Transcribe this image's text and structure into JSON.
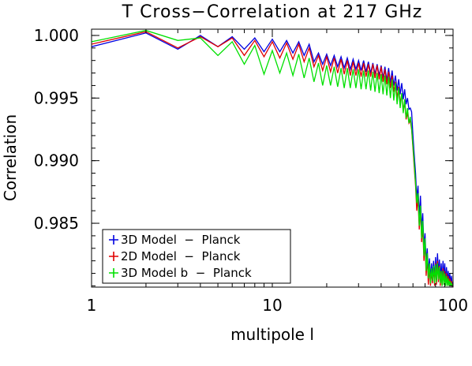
{
  "chart_data": {
    "type": "line",
    "title": "T Cross−Correlation at 217 GHz",
    "xlabel": "multipole l",
    "ylabel": "Correlation",
    "xscale": "log",
    "xlim": [
      1,
      100
    ],
    "ylim": [
      0.9799,
      1.0005
    ],
    "x_ticks": [
      1,
      10,
      100
    ],
    "x_tick_labels": [
      "1",
      "10",
      "100"
    ],
    "y_ticks": [
      0.985,
      0.99,
      0.995,
      1.0
    ],
    "y_tick_labels": [
      "0.985",
      "0.990",
      "0.995",
      "1.000"
    ],
    "grid": false,
    "legend_position": "bottom-left",
    "x": [
      1,
      2,
      3,
      4,
      5,
      6,
      7,
      8,
      9,
      10,
      11,
      12,
      13,
      14,
      15,
      16,
      17,
      18,
      19,
      20,
      21,
      22,
      23,
      24,
      25,
      26,
      27,
      28,
      29,
      30,
      31,
      32,
      33,
      34,
      35,
      36,
      37,
      38,
      39,
      40,
      41,
      42,
      43,
      44,
      45,
      46,
      47,
      48,
      49,
      50,
      51,
      52,
      53,
      54,
      55,
      56,
      57,
      58,
      59,
      60,
      61,
      62,
      63,
      64,
      65,
      66,
      67,
      68,
      69,
      70,
      71,
      72,
      73,
      74,
      75,
      76,
      77,
      78,
      79,
      80,
      81,
      82,
      83,
      84,
      85,
      86,
      87,
      88,
      89,
      90,
      91,
      92,
      93,
      94,
      95,
      96,
      97,
      98,
      99,
      100
    ],
    "series": [
      {
        "name": "3D Model  −  Planck",
        "color": "#0000e0",
        "values": [
          0.9991,
          1.0002,
          0.9989,
          1.0,
          0.9991,
          0.9999,
          0.9989,
          0.9998,
          0.9987,
          0.9997,
          0.9987,
          0.9996,
          0.9986,
          0.9995,
          0.9984,
          0.9993,
          0.9979,
          0.9986,
          0.9977,
          0.9985,
          0.9976,
          0.9984,
          0.9975,
          0.9983,
          0.9974,
          0.9982,
          0.9973,
          0.9981,
          0.9973,
          0.998,
          0.9972,
          0.998,
          0.9971,
          0.9979,
          0.997,
          0.9978,
          0.9969,
          0.9977,
          0.9968,
          0.9976,
          0.9966,
          0.9975,
          0.9964,
          0.9974,
          0.9962,
          0.9972,
          0.996,
          0.9968,
          0.9956,
          0.9965,
          0.9953,
          0.9962,
          0.9949,
          0.9957,
          0.9945,
          0.995,
          0.9941,
          0.9942,
          0.9939,
          0.992,
          0.9905,
          0.989,
          0.987,
          0.988,
          0.9855,
          0.9872,
          0.9845,
          0.9858,
          0.983,
          0.9842,
          0.9818,
          0.983,
          0.981,
          0.9822,
          0.9805,
          0.9818,
          0.9808,
          0.982,
          0.9805,
          0.9823,
          0.9808,
          0.9826,
          0.981,
          0.9821,
          0.9805,
          0.9818,
          0.9803,
          0.982,
          0.9806,
          0.9818,
          0.9803,
          0.9815,
          0.9802,
          0.9812,
          0.9804,
          0.981,
          0.9801,
          0.9808,
          0.98,
          0.9803
        ]
      },
      {
        "name": "2D Model  −  Planck",
        "color": "#e00000",
        "values": [
          0.9993,
          1.0003,
          0.999,
          0.9999,
          0.9991,
          0.9998,
          0.9984,
          0.9996,
          0.9983,
          0.9995,
          0.9982,
          0.9994,
          0.9981,
          0.9993,
          0.9979,
          0.999,
          0.9975,
          0.9984,
          0.9972,
          0.9983,
          0.9971,
          0.9982,
          0.997,
          0.9981,
          0.9969,
          0.998,
          0.9968,
          0.9979,
          0.9968,
          0.9978,
          0.9967,
          0.9978,
          0.9967,
          0.9977,
          0.9967,
          0.9977,
          0.9966,
          0.9976,
          0.9965,
          0.9975,
          0.9963,
          0.9973,
          0.9961,
          0.9971,
          0.9958,
          0.9968,
          0.9955,
          0.9963,
          0.995,
          0.9959,
          0.9946,
          0.9953,
          0.994,
          0.9947,
          0.9933,
          0.9938,
          0.993,
          0.9932,
          0.9925,
          0.991,
          0.9895,
          0.988,
          0.986,
          0.987,
          0.9845,
          0.9862,
          0.9835,
          0.9848,
          0.982,
          0.9835,
          0.9808,
          0.9822,
          0.9801,
          0.9815,
          0.98,
          0.9812,
          0.9802,
          0.9815,
          0.98,
          0.9818,
          0.9801,
          0.982,
          0.9803,
          0.9816,
          0.98,
          0.9812,
          0.98,
          0.9814,
          0.9801,
          0.9812,
          0.98,
          0.981,
          0.98,
          0.9808,
          0.98,
          0.9806,
          0.98,
          0.9804,
          0.98,
          0.9801
        ]
      },
      {
        "name": "3D Model b  −  Planck",
        "color": "#00e000",
        "values": [
          0.9995,
          1.0004,
          0.9996,
          0.9998,
          0.9984,
          0.9995,
          0.9977,
          0.9992,
          0.9969,
          0.9988,
          0.997,
          0.9986,
          0.9968,
          0.9985,
          0.9966,
          0.9982,
          0.9963,
          0.9978,
          0.996,
          0.9976,
          0.996,
          0.9975,
          0.9959,
          0.9974,
          0.9958,
          0.9974,
          0.9958,
          0.9973,
          0.9958,
          0.9973,
          0.9957,
          0.9972,
          0.9957,
          0.9972,
          0.9956,
          0.9971,
          0.9955,
          0.997,
          0.9954,
          0.9969,
          0.9953,
          0.9968,
          0.9952,
          0.9967,
          0.995,
          0.9965,
          0.9948,
          0.9962,
          0.9945,
          0.9958,
          0.9942,
          0.9954,
          0.9938,
          0.9949,
          0.9934,
          0.9942,
          0.993,
          0.9935,
          0.9926,
          0.9912,
          0.9898,
          0.9882,
          0.9866,
          0.9874,
          0.9848,
          0.9864,
          0.9838,
          0.9852,
          0.9824,
          0.9838,
          0.9812,
          0.9826,
          0.9806,
          0.9818,
          0.9802,
          0.9814,
          0.9804,
          0.9816,
          0.9802,
          0.9817,
          0.9803,
          0.9818,
          0.9805,
          0.9815,
          0.9802,
          0.9812,
          0.98,
          0.9812,
          0.9801,
          0.981,
          0.98,
          0.9808,
          0.98,
          0.9806,
          0.98,
          0.9804,
          0.98,
          0.9802,
          0.98,
          0.98
        ]
      }
    ]
  }
}
